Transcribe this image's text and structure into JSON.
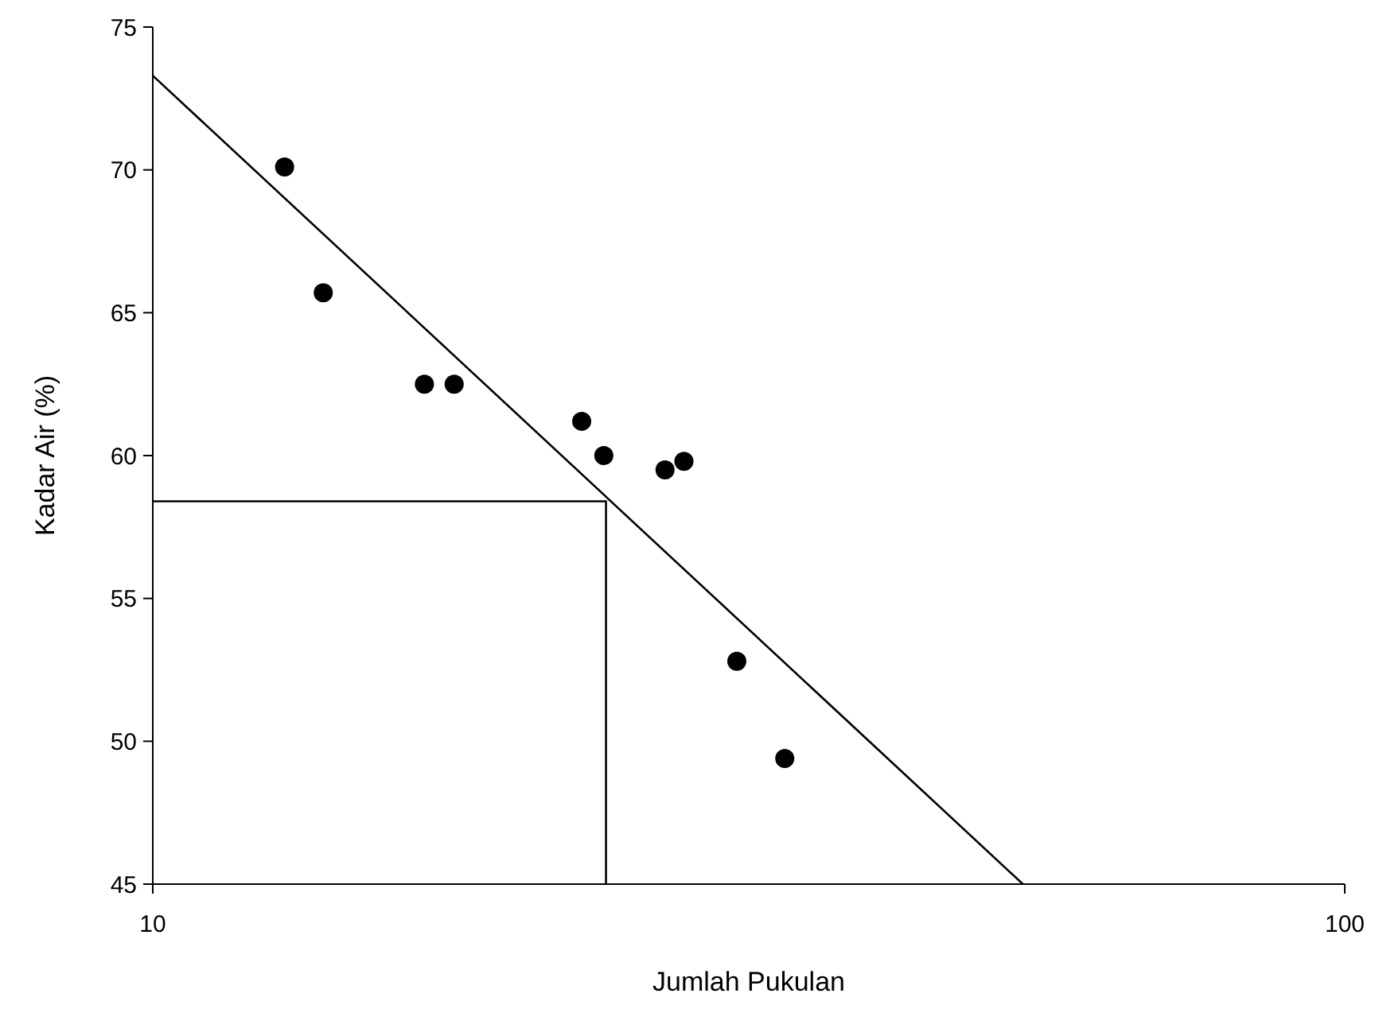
{
  "chart_data": {
    "type": "scatter",
    "xlabel": "Jumlah Pukulan",
    "ylabel": "Kadar Air (%)",
    "log": "x",
    "xlim": [
      10,
      100
    ],
    "xticks": [
      10,
      100
    ],
    "ylim": [
      45,
      75
    ],
    "yticks": [
      45,
      50,
      55,
      60,
      65,
      70,
      75
    ],
    "grid": false,
    "series": [
      {
        "color": "#000000",
        "marker": "circle",
        "x": [
          12.9,
          13.9,
          16.9,
          17.9,
          22.9,
          23.9,
          26.9,
          27.9,
          30.9,
          33.9
        ],
        "values": [
          70.1,
          65.7,
          62.5,
          62.5,
          61.2,
          60.0,
          59.5,
          59.8,
          52.8,
          49.4
        ]
      },
      {
        "type": "line",
        "color": "#000000",
        "line_style": "solid",
        "x": [
          10,
          53.7
        ],
        "values": [
          73.3,
          45
        ]
      },
      {
        "type": "line",
        "color": "#000000",
        "line_style": "solid",
        "x": [
          10,
          24,
          24
        ],
        "values": [
          58.4,
          58.4,
          45
        ]
      }
    ]
  }
}
